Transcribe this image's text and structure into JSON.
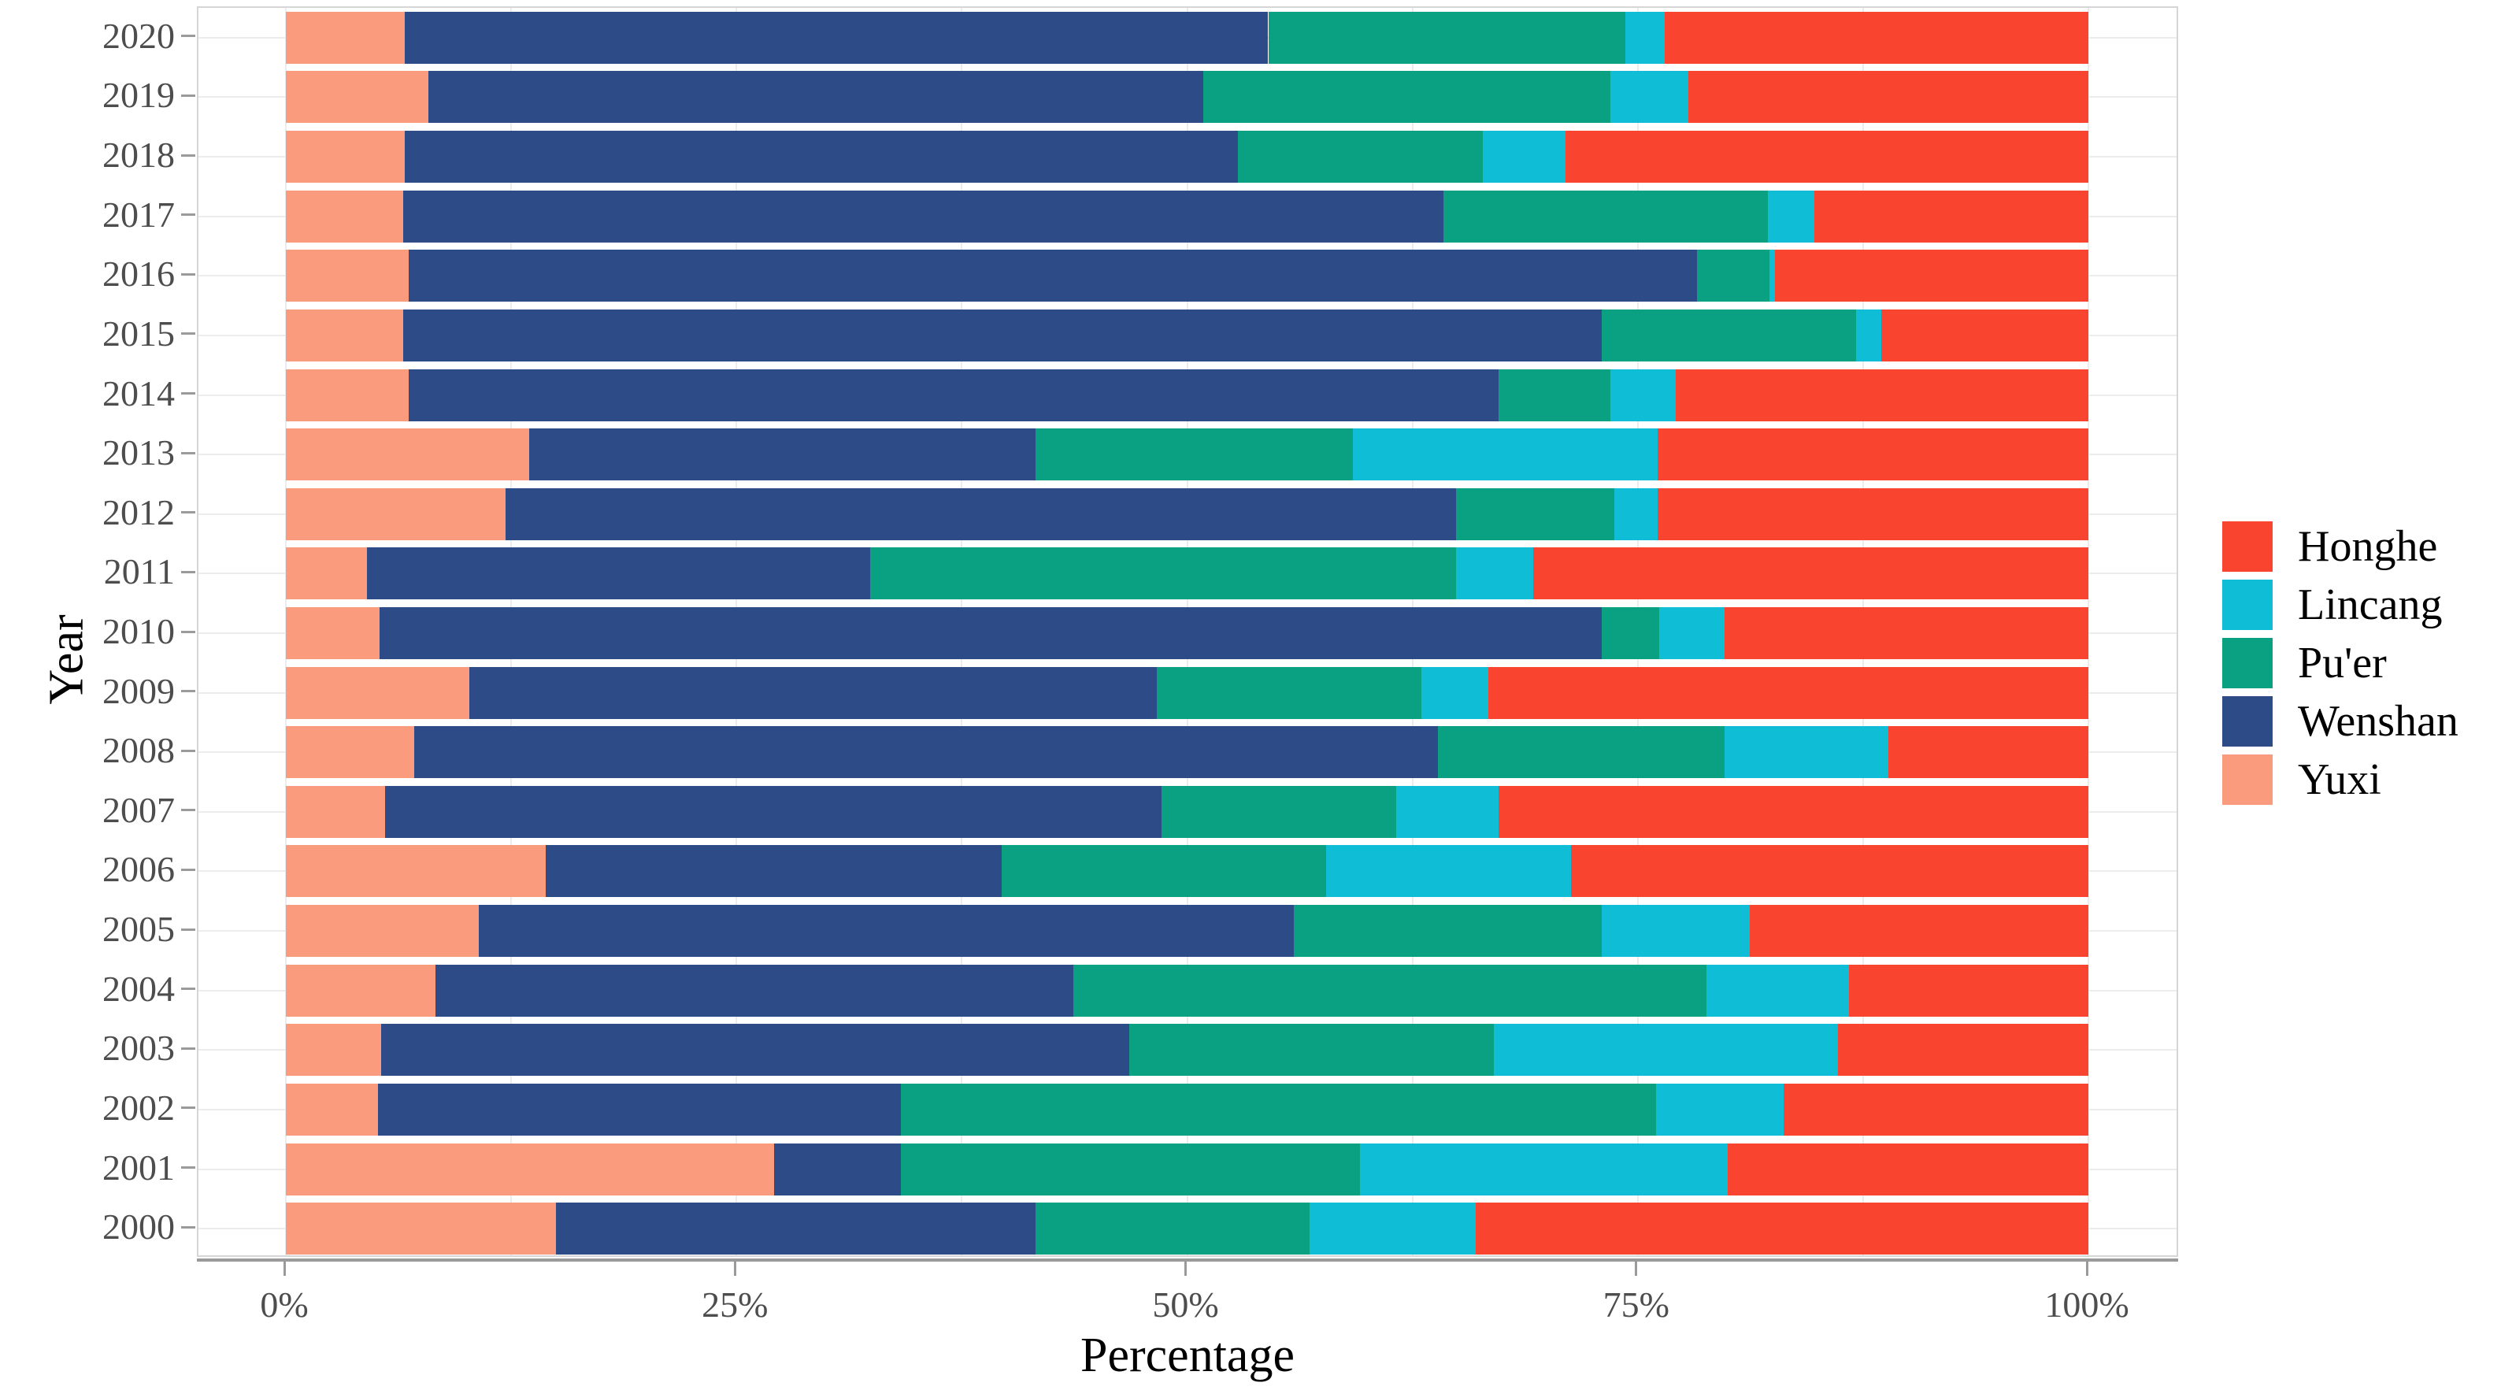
{
  "axes": {
    "x_label": "Percentage",
    "y_label": "Year",
    "x_ticks": [
      {
        "label": "0%",
        "value": 0
      },
      {
        "label": "25%",
        "value": 25
      },
      {
        "label": "50%",
        "value": 50
      },
      {
        "label": "75%",
        "value": 75
      },
      {
        "label": "100%",
        "value": 100
      }
    ]
  },
  "legend": {
    "position": "right",
    "items": [
      {
        "label": "Honghe",
        "color": "#F9452F"
      },
      {
        "label": "Lincang",
        "color": "#10BDD6"
      },
      {
        "label": "Pu'er",
        "color": "#0AA183"
      },
      {
        "label": "Wenshan",
        "color": "#2D4B87"
      },
      {
        "label": "Yuxi",
        "color": "#FA9B7D"
      }
    ]
  },
  "chart_data": {
    "type": "bar",
    "orientation": "horizontal",
    "stacked": true,
    "unit": "percent",
    "xlim": [
      0,
      100
    ],
    "grid": true,
    "legend_position": "right",
    "title": "",
    "xlabel": "Percentage",
    "ylabel": "Year",
    "categories": [
      "2020",
      "2019",
      "2018",
      "2017",
      "2016",
      "2015",
      "2014",
      "2013",
      "2012",
      "2011",
      "2010",
      "2009",
      "2008",
      "2007",
      "2006",
      "2005",
      "2004",
      "2003",
      "2002",
      "2001",
      "2000"
    ],
    "stacking_order_note": "series listed left-to-right as stacked in each bar",
    "series": [
      {
        "name": "Yuxi",
        "color": "#FA9B7D",
        "values": [
          6.6,
          7.9,
          6.6,
          6.5,
          6.8,
          6.5,
          6.8,
          13.5,
          12.2,
          4.5,
          5.2,
          10.2,
          7.1,
          5.5,
          14.4,
          10.7,
          8.3,
          5.3,
          5.1,
          27.1,
          15.0
        ]
      },
      {
        "name": "Wenshan",
        "color": "#2D4B87",
        "values": [
          47.9,
          43.0,
          46.2,
          57.7,
          71.5,
          66.5,
          60.5,
          28.1,
          52.7,
          27.9,
          67.8,
          38.1,
          56.8,
          43.1,
          25.3,
          45.2,
          35.4,
          41.5,
          29.0,
          7.0,
          26.6
        ]
      },
      {
        "name": "Pu'er",
        "color": "#0AA183",
        "values": [
          19.8,
          22.6,
          13.6,
          18.0,
          4.0,
          14.1,
          6.2,
          17.6,
          8.8,
          32.5,
          3.2,
          14.7,
          15.9,
          13.0,
          18.0,
          17.1,
          35.1,
          20.2,
          41.9,
          25.5,
          15.2
        ]
      },
      {
        "name": "Lincang",
        "color": "#10BDD6",
        "values": [
          2.2,
          4.3,
          4.6,
          2.6,
          0.3,
          1.4,
          3.6,
          16.9,
          2.4,
          4.3,
          3.6,
          3.7,
          9.1,
          5.7,
          13.6,
          8.2,
          7.9,
          19.1,
          7.1,
          20.4,
          9.2
        ]
      },
      {
        "name": "Honghe",
        "color": "#F9452F",
        "values": [
          23.5,
          22.2,
          29.0,
          15.2,
          17.4,
          11.5,
          22.9,
          23.9,
          23.9,
          30.8,
          20.2,
          33.3,
          11.1,
          32.7,
          28.7,
          18.8,
          13.3,
          13.9,
          16.9,
          20.0,
          34.0
        ]
      }
    ]
  }
}
